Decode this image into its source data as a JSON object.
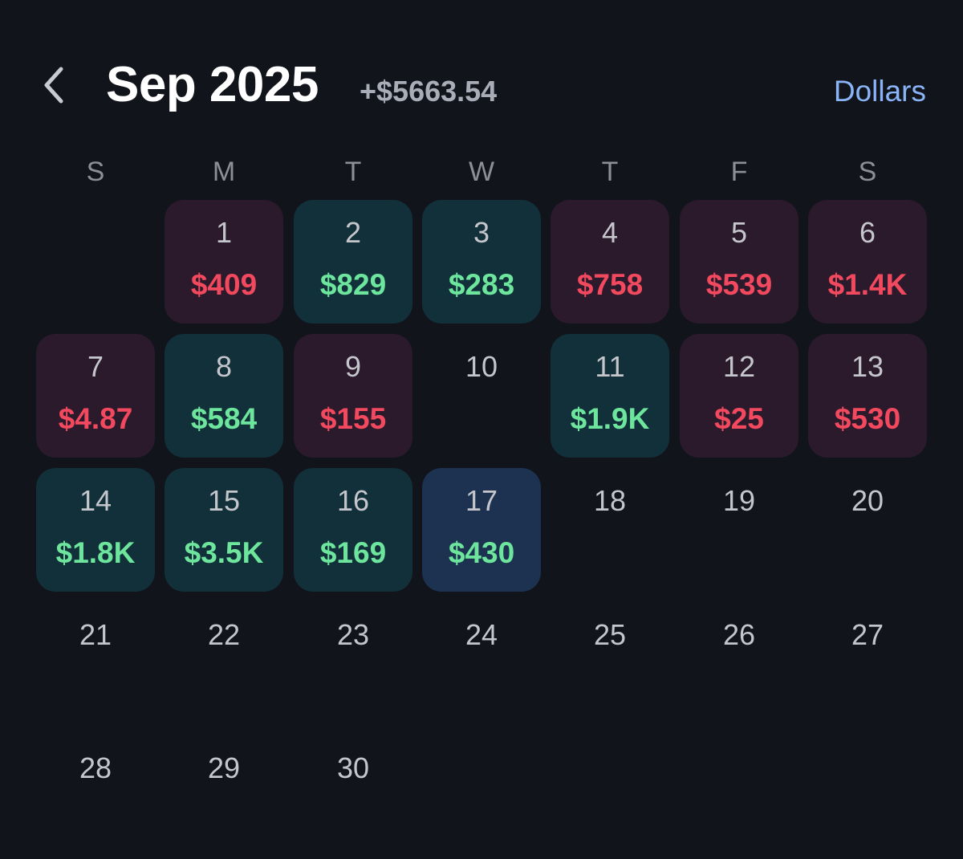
{
  "header": {
    "month_title": "Sep 2025",
    "month_total": "+$5663.54",
    "unit_toggle": "Dollars",
    "back_icon": "chevron-left-icon"
  },
  "colors": {
    "background": "#12141b",
    "loss_bg": "#2b1a2c",
    "loss_text": "#f2495e",
    "gain_bg": "#12303a",
    "gain_text": "#6de59d",
    "today_bg": "#1c3250",
    "accent": "#8ab4f8",
    "total_text": "#a9adb8"
  },
  "weekdays": [
    "S",
    "M",
    "T",
    "W",
    "T",
    "F",
    "S"
  ],
  "first_weekday_index": 1,
  "days": [
    {
      "day": "1",
      "amount": "$409",
      "status": "loss"
    },
    {
      "day": "2",
      "amount": "$829",
      "status": "gain"
    },
    {
      "day": "3",
      "amount": "$283",
      "status": "gain"
    },
    {
      "day": "4",
      "amount": "$758",
      "status": "loss"
    },
    {
      "day": "5",
      "amount": "$539",
      "status": "loss"
    },
    {
      "day": "6",
      "amount": "$1.4K",
      "status": "loss"
    },
    {
      "day": "7",
      "amount": "$4.87",
      "status": "loss"
    },
    {
      "day": "8",
      "amount": "$584",
      "status": "gain"
    },
    {
      "day": "9",
      "amount": "$155",
      "status": "loss"
    },
    {
      "day": "10",
      "amount": "",
      "status": "empty"
    },
    {
      "day": "11",
      "amount": "$1.9K",
      "status": "gain"
    },
    {
      "day": "12",
      "amount": "$25",
      "status": "loss"
    },
    {
      "day": "13",
      "amount": "$530",
      "status": "loss"
    },
    {
      "day": "14",
      "amount": "$1.8K",
      "status": "gain"
    },
    {
      "day": "15",
      "amount": "$3.5K",
      "status": "gain"
    },
    {
      "day": "16",
      "amount": "$169",
      "status": "gain"
    },
    {
      "day": "17",
      "amount": "$430",
      "status": "today"
    },
    {
      "day": "18",
      "amount": "",
      "status": "empty"
    },
    {
      "day": "19",
      "amount": "",
      "status": "empty"
    },
    {
      "day": "20",
      "amount": "",
      "status": "empty"
    },
    {
      "day": "21",
      "amount": "",
      "status": "empty"
    },
    {
      "day": "22",
      "amount": "",
      "status": "empty"
    },
    {
      "day": "23",
      "amount": "",
      "status": "empty"
    },
    {
      "day": "24",
      "amount": "",
      "status": "empty"
    },
    {
      "day": "25",
      "amount": "",
      "status": "empty"
    },
    {
      "day": "26",
      "amount": "",
      "status": "empty"
    },
    {
      "day": "27",
      "amount": "",
      "status": "empty"
    },
    {
      "day": "28",
      "amount": "",
      "status": "empty"
    },
    {
      "day": "29",
      "amount": "",
      "status": "empty"
    },
    {
      "day": "30",
      "amount": "",
      "status": "empty"
    }
  ]
}
